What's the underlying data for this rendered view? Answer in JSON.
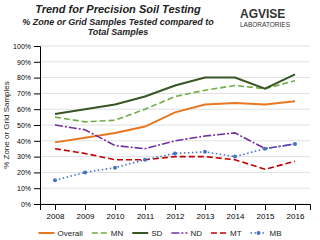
{
  "chart_data": {
    "type": "line",
    "title": "Trend for Precision Soil Testing",
    "subtitle": "% Zone or Grid Samples Tested compared to\nTotal Samples",
    "annotations": [
      "AGVISE",
      "LABORATORIES"
    ],
    "y_label": "% Zone or Grid Samples",
    "x": [
      2008,
      2009,
      2010,
      2011,
      2012,
      2013,
      2014,
      2015,
      2016
    ],
    "xlim": [
      2007.5,
      2016.5
    ],
    "xticks": [
      2008,
      2009,
      2010,
      2011,
      2012,
      2013,
      2014,
      2015,
      2016
    ],
    "ylim": [
      0,
      100
    ],
    "yticks": [
      {
        "value": 0,
        "label": "0%"
      },
      {
        "value": 10,
        "label": "10%"
      },
      {
        "value": 20,
        "label": "20%"
      },
      {
        "value": 30,
        "label": "30%"
      },
      {
        "value": 40,
        "label": "40%"
      },
      {
        "value": 50,
        "label": "50%"
      },
      {
        "value": 60,
        "label": "60%"
      },
      {
        "value": 70,
        "label": "70%"
      },
      {
        "value": 80,
        "label": "80%"
      },
      {
        "value": 90,
        "label": "90%"
      },
      {
        "value": 100,
        "label": "100%"
      }
    ],
    "grid": true,
    "legend": "bottom",
    "series": [
      {
        "name": "Overall",
        "color": "#E87722",
        "line_style": "solid",
        "values": [
          39,
          42,
          45,
          49,
          58,
          63,
          64,
          63,
          65
        ]
      },
      {
        "name": "MN",
        "color": "#70AD47",
        "line_style": "dashed",
        "values": [
          55,
          52,
          53,
          60,
          68,
          72,
          75,
          73,
          78
        ]
      },
      {
        "name": "SD",
        "color": "#375623",
        "line_style": "solid",
        "values": [
          57,
          60,
          63,
          68,
          75,
          80,
          80,
          73,
          82
        ]
      },
      {
        "name": "ND",
        "color": "#7030A0",
        "line_style": "dashdot",
        "values": [
          50,
          47,
          37,
          35,
          40,
          43,
          45,
          35,
          38
        ]
      },
      {
        "name": "MT",
        "color": "#C00000",
        "line_style": "dashed",
        "values": [
          35,
          32,
          28,
          28,
          30,
          30,
          28,
          22,
          27
        ]
      },
      {
        "name": "MB",
        "color": "#4472C4",
        "line_style": "dotted",
        "marker": "circle",
        "values": [
          15,
          20,
          23,
          28,
          32,
          33,
          30,
          35,
          38
        ]
      }
    ]
  }
}
